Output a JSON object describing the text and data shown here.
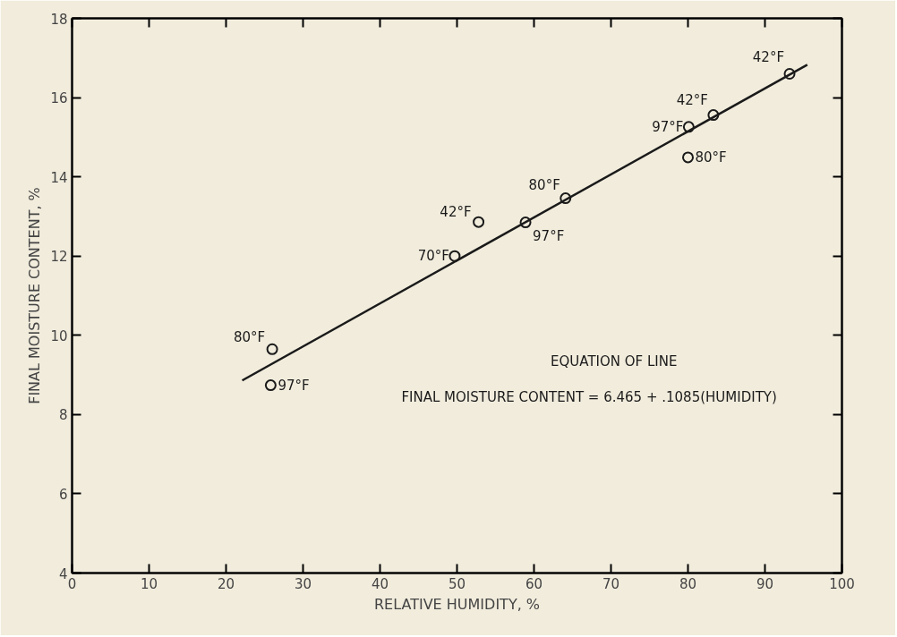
{
  "chart_data": {
    "type": "scatter",
    "xlabel": "RELATIVE HUMIDITY, %",
    "ylabel": "FINAL MOISTURE CONTENT, %",
    "xlim": [
      0,
      100
    ],
    "xticks": [
      0,
      10,
      20,
      30,
      40,
      50,
      60,
      70,
      80,
      90,
      100
    ],
    "ylim": [
      4,
      18
    ],
    "yticks": [
      4,
      6,
      8,
      10,
      12,
      14,
      16,
      18
    ],
    "grid": false,
    "series": [
      {
        "marker": "circle",
        "color": "#1a1a1a",
        "x": [
          26.0,
          25.8,
          49.7,
          52.8,
          58.9,
          64.1,
          80.1,
          80.0,
          83.3,
          93.2
        ],
        "values": [
          9.65,
          8.74,
          12.0,
          12.86,
          12.85,
          13.46,
          15.26,
          14.49,
          15.56,
          16.6
        ]
      },
      {
        "type": "line",
        "marker": "none",
        "color": "#1a1a1a",
        "x": [
          22.1,
          95.5
        ],
        "values": [
          8.86,
          16.83
        ]
      }
    ],
    "annotations": [
      {
        "text": "80°F",
        "x": 26.0,
        "y": 9.65
      },
      {
        "text": "97°F",
        "x": 25.8,
        "y": 8.74
      },
      {
        "text": "70°F",
        "x": 49.7,
        "y": 12.0
      },
      {
        "text": "42°F",
        "x": 52.8,
        "y": 12.86
      },
      {
        "text": "97°F",
        "x": 58.9,
        "y": 12.85
      },
      {
        "text": "80°F",
        "x": 64.1,
        "y": 13.46
      },
      {
        "text": "97°F",
        "x": 80.1,
        "y": 15.26
      },
      {
        "text": "80°F",
        "x": 80.0,
        "y": 14.49
      },
      {
        "text": "42°F",
        "x": 83.3,
        "y": 15.56
      },
      {
        "text": "42°F",
        "x": 93.2,
        "y": 16.6
      },
      "EQUATION  OF  LINE",
      "FINAL MOISTURE  CONTENT = 6.465 + .1085(HUMIDITY)"
    ]
  }
}
